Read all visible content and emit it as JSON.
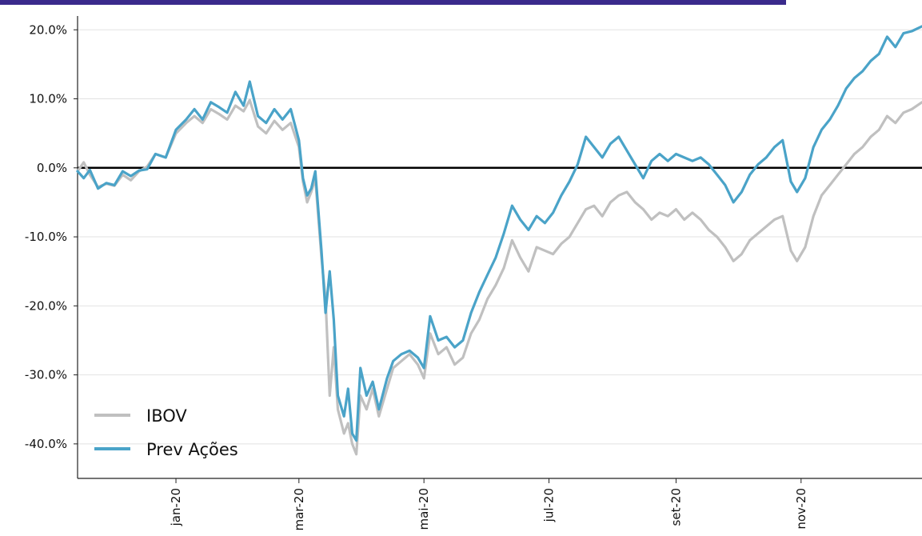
{
  "chart_data": {
    "type": "line",
    "title": "",
    "xlabel": "",
    "ylabel": "",
    "ylim": [
      -45,
      22
    ],
    "y_ticks": [
      {
        "value": 20,
        "label": "20.0%"
      },
      {
        "value": 10,
        "label": "10.0%"
      },
      {
        "value": 0,
        "label": "0.0%"
      },
      {
        "value": -10,
        "label": "-10.0%"
      },
      {
        "value": -20,
        "label": "-20.0%"
      },
      {
        "value": -30,
        "label": "-30.0%"
      },
      {
        "value": -40,
        "label": "-40.0%"
      }
    ],
    "x_ticks": [
      {
        "date": "2020-01-01",
        "label": "jan-20"
      },
      {
        "date": "2020-03-01",
        "label": "mar-20"
      },
      {
        "date": "2020-05-01",
        "label": "mai-20"
      },
      {
        "date": "2020-07-01",
        "label": "jul-20"
      },
      {
        "date": "2020-09-01",
        "label": "set-20"
      },
      {
        "date": "2020-11-01",
        "label": "nov-20"
      }
    ],
    "xlim": [
      "2019-11-14",
      "2020-12-30"
    ],
    "grid": "horizontal",
    "legend_position": "bottom-left",
    "zero_line": 0,
    "series": [
      {
        "name": "IBOV",
        "color": "#c0c0c0",
        "points": [
          [
            "2019-11-14",
            -0.5
          ],
          [
            "2019-11-17",
            0.8
          ],
          [
            "2019-11-20",
            -1.0
          ],
          [
            "2019-11-24",
            -2.8
          ],
          [
            "2019-11-28",
            -2.3
          ],
          [
            "2019-12-02",
            -2.6
          ],
          [
            "2019-12-06",
            -1.0
          ],
          [
            "2019-12-10",
            -1.8
          ],
          [
            "2019-12-14",
            -0.5
          ],
          [
            "2019-12-18",
            0.2
          ],
          [
            "2019-12-22",
            2.0
          ],
          [
            "2019-12-27",
            1.5
          ],
          [
            "2020-01-01",
            5.0
          ],
          [
            "2020-01-06",
            6.5
          ],
          [
            "2020-01-10",
            7.5
          ],
          [
            "2020-01-14",
            6.5
          ],
          [
            "2020-01-18",
            8.5
          ],
          [
            "2020-01-22",
            7.8
          ],
          [
            "2020-01-26",
            7.0
          ],
          [
            "2020-01-30",
            9.0
          ],
          [
            "2020-02-03",
            8.2
          ],
          [
            "2020-02-06",
            9.8
          ],
          [
            "2020-02-10",
            6.0
          ],
          [
            "2020-02-14",
            5.0
          ],
          [
            "2020-02-18",
            6.8
          ],
          [
            "2020-02-22",
            5.5
          ],
          [
            "2020-02-26",
            6.5
          ],
          [
            "2020-03-01",
            3.0
          ],
          [
            "2020-03-03",
            -2.0
          ],
          [
            "2020-03-05",
            -5.0
          ],
          [
            "2020-03-07",
            -3.5
          ],
          [
            "2020-03-09",
            -1.5
          ],
          [
            "2020-03-12",
            -13.0
          ],
          [
            "2020-03-14",
            -19.0
          ],
          [
            "2020-03-16",
            -33.0
          ],
          [
            "2020-03-18",
            -26.0
          ],
          [
            "2020-03-20",
            -35.0
          ],
          [
            "2020-03-23",
            -38.5
          ],
          [
            "2020-03-25",
            -37.0
          ],
          [
            "2020-03-27",
            -40.0
          ],
          [
            "2020-03-29",
            -41.5
          ],
          [
            "2020-03-31",
            -33.0
          ],
          [
            "2020-04-03",
            -35.0
          ],
          [
            "2020-04-06",
            -32.0
          ],
          [
            "2020-04-09",
            -36.0
          ],
          [
            "2020-04-13",
            -32.0
          ],
          [
            "2020-04-16",
            -29.0
          ],
          [
            "2020-04-20",
            -28.0
          ],
          [
            "2020-04-24",
            -27.0
          ],
          [
            "2020-04-28",
            -28.5
          ],
          [
            "2020-05-01",
            -30.5
          ],
          [
            "2020-05-04",
            -24.0
          ],
          [
            "2020-05-08",
            -27.0
          ],
          [
            "2020-05-12",
            -26.0
          ],
          [
            "2020-05-16",
            -28.5
          ],
          [
            "2020-05-20",
            -27.5
          ],
          [
            "2020-05-24",
            -24.0
          ],
          [
            "2020-05-28",
            -22.0
          ],
          [
            "2020-06-01",
            -19.0
          ],
          [
            "2020-06-05",
            -17.0
          ],
          [
            "2020-06-09",
            -14.5
          ],
          [
            "2020-06-13",
            -10.5
          ],
          [
            "2020-06-17",
            -13.0
          ],
          [
            "2020-06-21",
            -15.0
          ],
          [
            "2020-06-25",
            -11.5
          ],
          [
            "2020-06-29",
            -12.0
          ],
          [
            "2020-07-03",
            -12.5
          ],
          [
            "2020-07-07",
            -11.0
          ],
          [
            "2020-07-11",
            -10.0
          ],
          [
            "2020-07-15",
            -8.0
          ],
          [
            "2020-07-19",
            -6.0
          ],
          [
            "2020-07-23",
            -5.5
          ],
          [
            "2020-07-27",
            -7.0
          ],
          [
            "2020-07-31",
            -5.0
          ],
          [
            "2020-08-04",
            -4.0
          ],
          [
            "2020-08-08",
            -3.5
          ],
          [
            "2020-08-12",
            -5.0
          ],
          [
            "2020-08-16",
            -6.0
          ],
          [
            "2020-08-20",
            -7.5
          ],
          [
            "2020-08-24",
            -6.5
          ],
          [
            "2020-08-28",
            -7.0
          ],
          [
            "2020-09-01",
            -6.0
          ],
          [
            "2020-09-05",
            -7.5
          ],
          [
            "2020-09-09",
            -6.5
          ],
          [
            "2020-09-13",
            -7.5
          ],
          [
            "2020-09-17",
            -9.0
          ],
          [
            "2020-09-21",
            -10.0
          ],
          [
            "2020-09-25",
            -11.5
          ],
          [
            "2020-09-29",
            -13.5
          ],
          [
            "2020-10-03",
            -12.5
          ],
          [
            "2020-10-07",
            -10.5
          ],
          [
            "2020-10-11",
            -9.5
          ],
          [
            "2020-10-15",
            -8.5
          ],
          [
            "2020-10-19",
            -7.5
          ],
          [
            "2020-10-23",
            -7.0
          ],
          [
            "2020-10-27",
            -12.0
          ],
          [
            "2020-10-30",
            -13.5
          ],
          [
            "2020-11-03",
            -11.5
          ],
          [
            "2020-11-07",
            -7.0
          ],
          [
            "2020-11-11",
            -4.0
          ],
          [
            "2020-11-15",
            -2.5
          ],
          [
            "2020-11-19",
            -1.0
          ],
          [
            "2020-11-23",
            0.5
          ],
          [
            "2020-11-27",
            2.0
          ],
          [
            "2020-12-01",
            3.0
          ],
          [
            "2020-12-05",
            4.5
          ],
          [
            "2020-12-09",
            5.5
          ],
          [
            "2020-12-13",
            7.5
          ],
          [
            "2020-12-17",
            6.5
          ],
          [
            "2020-12-21",
            8.0
          ],
          [
            "2020-12-25",
            8.5
          ],
          [
            "2020-12-30",
            9.5
          ]
        ]
      },
      {
        "name": "Prev Ações",
        "color": "#4aa3c8",
        "points": [
          [
            "2019-11-14",
            -0.5
          ],
          [
            "2019-11-17",
            -1.5
          ],
          [
            "2019-11-20",
            -0.3
          ],
          [
            "2019-11-24",
            -3.0
          ],
          [
            "2019-11-28",
            -2.2
          ],
          [
            "2019-12-02",
            -2.5
          ],
          [
            "2019-12-06",
            -0.5
          ],
          [
            "2019-12-10",
            -1.2
          ],
          [
            "2019-12-14",
            -0.4
          ],
          [
            "2019-12-18",
            -0.2
          ],
          [
            "2019-12-22",
            2.0
          ],
          [
            "2019-12-27",
            1.5
          ],
          [
            "2020-01-01",
            5.5
          ],
          [
            "2020-01-06",
            7.0
          ],
          [
            "2020-01-10",
            8.5
          ],
          [
            "2020-01-14",
            7.0
          ],
          [
            "2020-01-18",
            9.5
          ],
          [
            "2020-01-22",
            8.8
          ],
          [
            "2020-01-26",
            8.0
          ],
          [
            "2020-01-30",
            11.0
          ],
          [
            "2020-02-03",
            9.0
          ],
          [
            "2020-02-06",
            12.5
          ],
          [
            "2020-02-10",
            7.5
          ],
          [
            "2020-02-14",
            6.5
          ],
          [
            "2020-02-18",
            8.5
          ],
          [
            "2020-02-22",
            7.0
          ],
          [
            "2020-02-26",
            8.5
          ],
          [
            "2020-03-01",
            4.0
          ],
          [
            "2020-03-03",
            -1.5
          ],
          [
            "2020-03-05",
            -4.0
          ],
          [
            "2020-03-07",
            -3.0
          ],
          [
            "2020-03-09",
            -0.5
          ],
          [
            "2020-03-12",
            -12.0
          ],
          [
            "2020-03-14",
            -21.0
          ],
          [
            "2020-03-16",
            -15.0
          ],
          [
            "2020-03-18",
            -22.0
          ],
          [
            "2020-03-20",
            -33.0
          ],
          [
            "2020-03-23",
            -36.0
          ],
          [
            "2020-03-25",
            -32.0
          ],
          [
            "2020-03-27",
            -38.5
          ],
          [
            "2020-03-29",
            -39.5
          ],
          [
            "2020-03-31",
            -29.0
          ],
          [
            "2020-04-03",
            -33.0
          ],
          [
            "2020-04-06",
            -31.0
          ],
          [
            "2020-04-09",
            -35.0
          ],
          [
            "2020-04-13",
            -30.5
          ],
          [
            "2020-04-16",
            -28.0
          ],
          [
            "2020-04-20",
            -27.0
          ],
          [
            "2020-04-24",
            -26.5
          ],
          [
            "2020-04-28",
            -27.5
          ],
          [
            "2020-05-01",
            -29.0
          ],
          [
            "2020-05-04",
            -21.5
          ],
          [
            "2020-05-08",
            -25.0
          ],
          [
            "2020-05-12",
            -24.5
          ],
          [
            "2020-05-16",
            -26.0
          ],
          [
            "2020-05-20",
            -25.0
          ],
          [
            "2020-05-24",
            -21.0
          ],
          [
            "2020-05-28",
            -18.0
          ],
          [
            "2020-06-01",
            -15.5
          ],
          [
            "2020-06-05",
            -13.0
          ],
          [
            "2020-06-09",
            -9.5
          ],
          [
            "2020-06-13",
            -5.5
          ],
          [
            "2020-06-17",
            -7.5
          ],
          [
            "2020-06-21",
            -9.0
          ],
          [
            "2020-06-25",
            -7.0
          ],
          [
            "2020-06-29",
            -8.0
          ],
          [
            "2020-07-03",
            -6.5
          ],
          [
            "2020-07-07",
            -4.0
          ],
          [
            "2020-07-11",
            -2.0
          ],
          [
            "2020-07-15",
            0.5
          ],
          [
            "2020-07-19",
            4.5
          ],
          [
            "2020-07-23",
            3.0
          ],
          [
            "2020-07-27",
            1.5
          ],
          [
            "2020-07-31",
            3.5
          ],
          [
            "2020-08-04",
            4.5
          ],
          [
            "2020-08-08",
            2.5
          ],
          [
            "2020-08-12",
            0.5
          ],
          [
            "2020-08-16",
            -1.5
          ],
          [
            "2020-08-20",
            1.0
          ],
          [
            "2020-08-24",
            2.0
          ],
          [
            "2020-08-28",
            1.0
          ],
          [
            "2020-09-01",
            2.0
          ],
          [
            "2020-09-05",
            1.5
          ],
          [
            "2020-09-09",
            1.0
          ],
          [
            "2020-09-13",
            1.5
          ],
          [
            "2020-09-17",
            0.5
          ],
          [
            "2020-09-21",
            -1.0
          ],
          [
            "2020-09-25",
            -2.5
          ],
          [
            "2020-09-29",
            -5.0
          ],
          [
            "2020-10-03",
            -3.5
          ],
          [
            "2020-10-07",
            -1.0
          ],
          [
            "2020-10-11",
            0.5
          ],
          [
            "2020-10-15",
            1.5
          ],
          [
            "2020-10-19",
            3.0
          ],
          [
            "2020-10-23",
            4.0
          ],
          [
            "2020-10-27",
            -2.0
          ],
          [
            "2020-10-30",
            -3.5
          ],
          [
            "2020-11-03",
            -1.5
          ],
          [
            "2020-11-07",
            3.0
          ],
          [
            "2020-11-11",
            5.5
          ],
          [
            "2020-11-15",
            7.0
          ],
          [
            "2020-11-19",
            9.0
          ],
          [
            "2020-11-23",
            11.5
          ],
          [
            "2020-11-27",
            13.0
          ],
          [
            "2020-12-01",
            14.0
          ],
          [
            "2020-12-05",
            15.5
          ],
          [
            "2020-12-09",
            16.5
          ],
          [
            "2020-12-13",
            19.0
          ],
          [
            "2020-12-17",
            17.5
          ],
          [
            "2020-12-21",
            19.5
          ],
          [
            "2020-12-25",
            19.8
          ],
          [
            "2020-12-30",
            20.5
          ]
        ]
      }
    ]
  }
}
